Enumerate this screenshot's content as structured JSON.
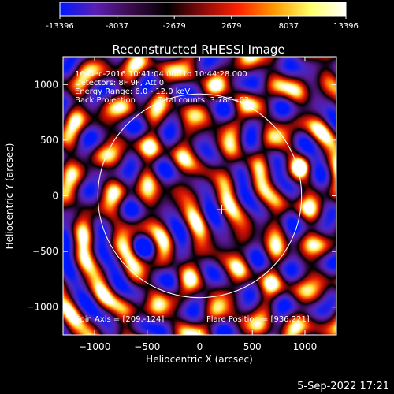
{
  "colorbar": {
    "ticks": [
      "-13396",
      "-8037",
      "-2679",
      "2679",
      "8037",
      "13396"
    ],
    "stops": [
      "#0018ff",
      "#5b1fb3",
      "#3a0b4a",
      "#000000",
      "#8a0a0a",
      "#ff2200",
      "#ff9a00",
      "#ffff66",
      "#ffffff"
    ]
  },
  "chart_data": {
    "type": "heatmap",
    "title": "Reconstructed RHESSI Image",
    "xlabel": "Heliocentric X (arcsec)",
    "ylabel": "Heliocentric Y (arcsec)",
    "xlim": [
      -1300,
      1300
    ],
    "ylim": [
      -1250,
      1250
    ],
    "x_ticks": [
      -1000,
      -500,
      0,
      500,
      1000
    ],
    "y_ticks": [
      -1000,
      -500,
      0,
      500,
      1000
    ],
    "x_tick_labels": [
      "−1000",
      "−500",
      "0",
      "500",
      "1000"
    ],
    "y_tick_labels": [
      "−1000",
      "−500",
      "0",
      "500",
      "1000"
    ],
    "value_range": [
      -13396,
      13396
    ],
    "solar_limb_radius": 968,
    "bright_source": [
      960,
      260
    ],
    "dark_source": [
      -550,
      -470
    ],
    "spin_axis": [
      209,
      -124
    ],
    "flare_position": [
      936,
      221
    ],
    "annotations": [
      "16-Dec-2016 10:41:04.000 to 10:44:28.000",
      "Detectors: 8F 9F, Att 0",
      "Energy Range: 6.0 - 12.0 keV",
      "Back Projection",
      "Total counts: 3.78E+03",
      "Spin Axis = [209,-124]",
      "Flare Position = [936,221]"
    ]
  },
  "footer": {
    "timestamp": "5-Sep-2022 17:21"
  }
}
